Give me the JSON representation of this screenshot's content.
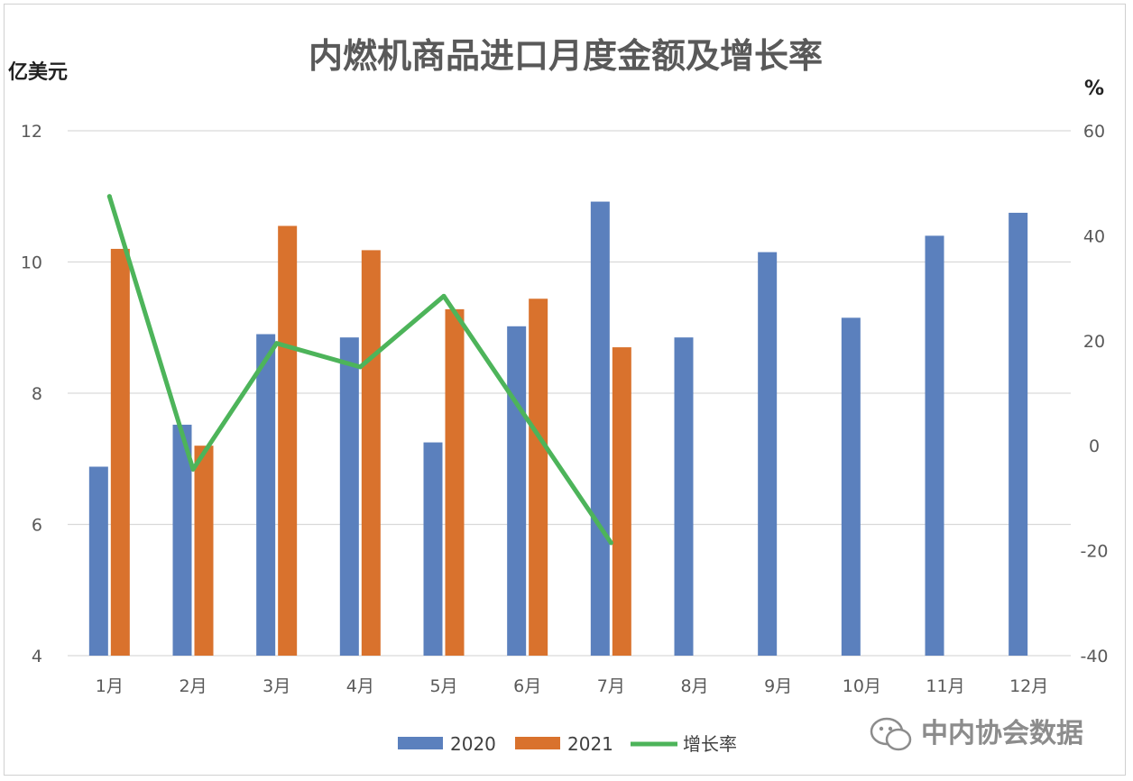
{
  "chart_data": {
    "type": "bar",
    "title": "内燃机商品进口月度金额及增长率",
    "ylabel": "亿美元",
    "y2label": "%",
    "categories": [
      "1月",
      "2月",
      "3月",
      "4月",
      "5月",
      "6月",
      "7月",
      "8月",
      "9月",
      "10月",
      "11月",
      "12月"
    ],
    "ylim": [
      4,
      12
    ],
    "yticks": [
      4,
      6,
      8,
      10,
      12
    ],
    "y2lim": [
      -40,
      60
    ],
    "y2ticks": [
      -40,
      -20,
      0,
      20,
      40,
      60
    ],
    "grid": true,
    "legend_position": "bottom",
    "series": [
      {
        "name": "2020",
        "kind": "bar",
        "axis": "left",
        "color": "#5b80bd",
        "values": [
          6.88,
          7.52,
          8.9,
          8.85,
          7.25,
          9.02,
          10.92,
          8.85,
          10.15,
          9.15,
          10.4,
          10.75
        ]
      },
      {
        "name": "2021",
        "kind": "bar",
        "axis": "left",
        "color": "#d9722d",
        "values": [
          10.2,
          7.2,
          10.55,
          10.18,
          9.28,
          9.44,
          8.7,
          null,
          null,
          null,
          null,
          null
        ]
      },
      {
        "name": "增长率",
        "kind": "line",
        "axis": "right",
        "color": "#4db45a",
        "values": [
          47.5,
          -4.5,
          19.5,
          15,
          28.5,
          null,
          -18.5,
          null,
          null,
          null,
          null,
          null
        ]
      }
    ]
  },
  "watermark": {
    "text": "中内协会数据",
    "icon": "wechat-icon"
  }
}
